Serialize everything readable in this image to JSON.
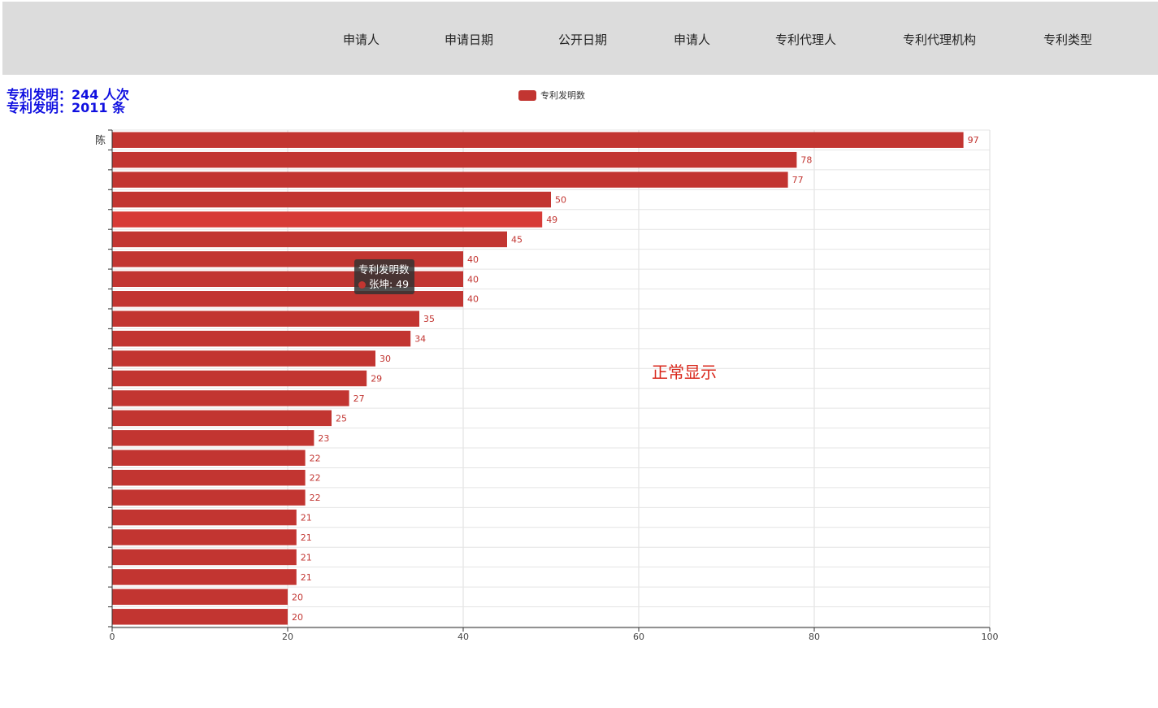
{
  "nav": {
    "items": [
      {
        "label": "申请人"
      },
      {
        "label": "申请日期"
      },
      {
        "label": "公开日期"
      },
      {
        "label": "申请人"
      },
      {
        "label": "专利代理人"
      },
      {
        "label": "专利代理机构"
      },
      {
        "label": "专利类型"
      }
    ]
  },
  "stats": {
    "line1": "专利发明：244 人次",
    "line2": "专利发明：2011 条"
  },
  "legend": {
    "label": "专利发明数",
    "color": "#c23531"
  },
  "status_text": "正常显示",
  "tooltip": {
    "title": "专利发明数",
    "entry": "张坤: 49"
  },
  "chart_data": {
    "type": "bar",
    "orientation": "horizontal",
    "series": [
      {
        "name": "专利发明数",
        "values": [
          97,
          78,
          77,
          50,
          49,
          45,
          40,
          40,
          40,
          35,
          34,
          30,
          29,
          27,
          25,
          23,
          22,
          22,
          22,
          21,
          21,
          21,
          21,
          20,
          20
        ]
      }
    ],
    "categories": [
      "陈",
      "",
      "",
      "",
      "",
      "",
      "",
      "",
      "",
      "",
      "",
      "",
      "",
      "",
      "",
      "",
      "",
      "",
      "",
      "",
      "",
      "",
      "",
      "",
      ""
    ],
    "xlim": [
      0,
      100
    ],
    "xticks": [
      0,
      20,
      40,
      60,
      80,
      100
    ],
    "highlight_index": 4,
    "colors": {
      "bar": "#c23531",
      "bar_highlight": "#d73b37",
      "label": "#c23531"
    },
    "grid": true
  }
}
